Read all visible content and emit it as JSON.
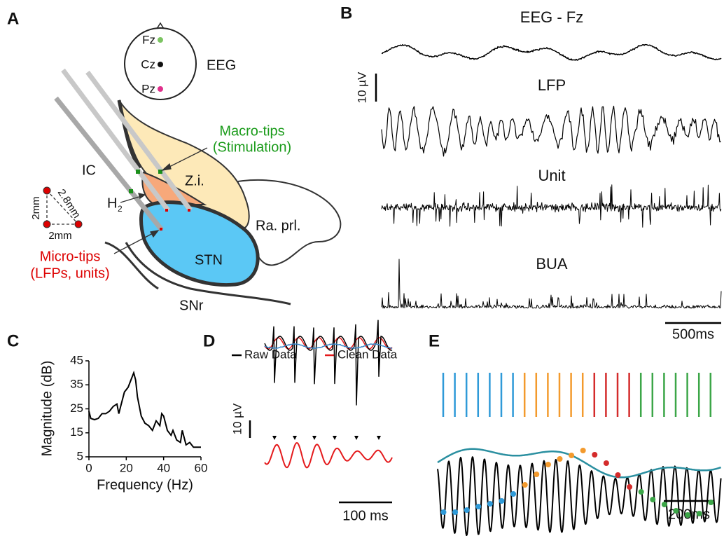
{
  "panel_a": {
    "label": "A",
    "eeg_label": "EEG",
    "electrodes": [
      "Fz",
      "Cz",
      "Pz"
    ],
    "ic": "IC",
    "zi": "Z.i.",
    "h2": {
      "main": "H",
      "sub": "2"
    },
    "ra_prl": "Ra. prl.",
    "stn": "STN",
    "snr": "SNr",
    "macro_tips": [
      "Macro-tips",
      "(Stimulation)"
    ],
    "micro_tips": [
      "Micro-tips",
      "(LFPs, units)"
    ],
    "geometry": {
      "side_a": "2mm",
      "diagonal": "2.8mm",
      "side_b": "2mm"
    }
  },
  "panel_b": {
    "label": "B",
    "traces": [
      "EEG - Fz",
      "LFP",
      "Unit",
      "BUA"
    ],
    "amplitude_scale": "10 µV",
    "time_scale": "500ms"
  },
  "panel_c": {
    "label": "C"
  },
  "chart_data": {
    "type": "line",
    "xlabel": "Frequency (Hz)",
    "ylabel": "Magnitude (dB)",
    "x": [
      0,
      1,
      3,
      5,
      7,
      9,
      11,
      13,
      15,
      16,
      17,
      19,
      21,
      23,
      24,
      25,
      26,
      28,
      30,
      32,
      34,
      36,
      38,
      39,
      40,
      42,
      44,
      45,
      47,
      49,
      50,
      52,
      54,
      56,
      58,
      60
    ],
    "values": [
      24,
      21,
      20.5,
      21,
      23,
      23,
      24,
      26,
      27,
      23,
      26,
      32,
      34,
      38,
      40,
      37,
      30,
      22,
      19,
      18,
      16,
      20,
      18,
      23,
      22,
      16,
      14,
      16,
      12,
      11,
      16,
      10,
      11,
      9,
      9,
      9
    ],
    "color": "#000000",
    "xlim": [
      0,
      60
    ],
    "ylim": [
      5,
      45
    ],
    "xticks": [
      0,
      20,
      40,
      60
    ],
    "yticks": [
      5,
      15,
      25,
      35,
      45
    ]
  },
  "panel_d": {
    "label": "D",
    "legend": [
      {
        "name": "Raw Data",
        "color": "#000000"
      },
      {
        "name": "Clean Data",
        "color": "#e41a1c"
      }
    ],
    "amplitude_scale": "10 µV",
    "time_scale": "100 ms"
  },
  "panel_e": {
    "label": "E",
    "time_scale": "200ms"
  }
}
